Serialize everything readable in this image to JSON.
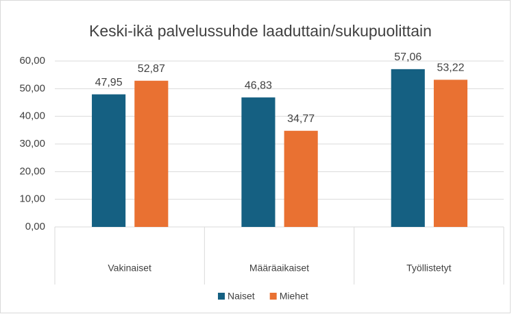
{
  "chart_data": {
    "type": "bar",
    "title": "Keski-ikä palvelussuhde laaduttain/sukupuolittain",
    "categories": [
      "Vakinaiset",
      "Määräaikaiset",
      "Työllistetyt"
    ],
    "series": [
      {
        "name": "Naiset",
        "color": "#156082",
        "values": [
          47.95,
          46.83,
          57.06
        ],
        "value_labels": [
          "47,95",
          "46,83",
          "57,06"
        ]
      },
      {
        "name": "Miehet",
        "color": "#e97132",
        "values": [
          52.87,
          34.77,
          53.22
        ],
        "value_labels": [
          "52,87",
          "34,77",
          "53,22"
        ]
      }
    ],
    "ylim": [
      0,
      60
    ],
    "yticks": [
      {
        "value": 0,
        "label": "0,00"
      },
      {
        "value": 10,
        "label": "10,00"
      },
      {
        "value": 20,
        "label": "20,00"
      },
      {
        "value": 30,
        "label": "30,00"
      },
      {
        "value": 40,
        "label": "40,00"
      },
      {
        "value": 50,
        "label": "50,00"
      },
      {
        "value": 60,
        "label": "60,00"
      }
    ],
    "grid": true,
    "legend": "bottom"
  }
}
